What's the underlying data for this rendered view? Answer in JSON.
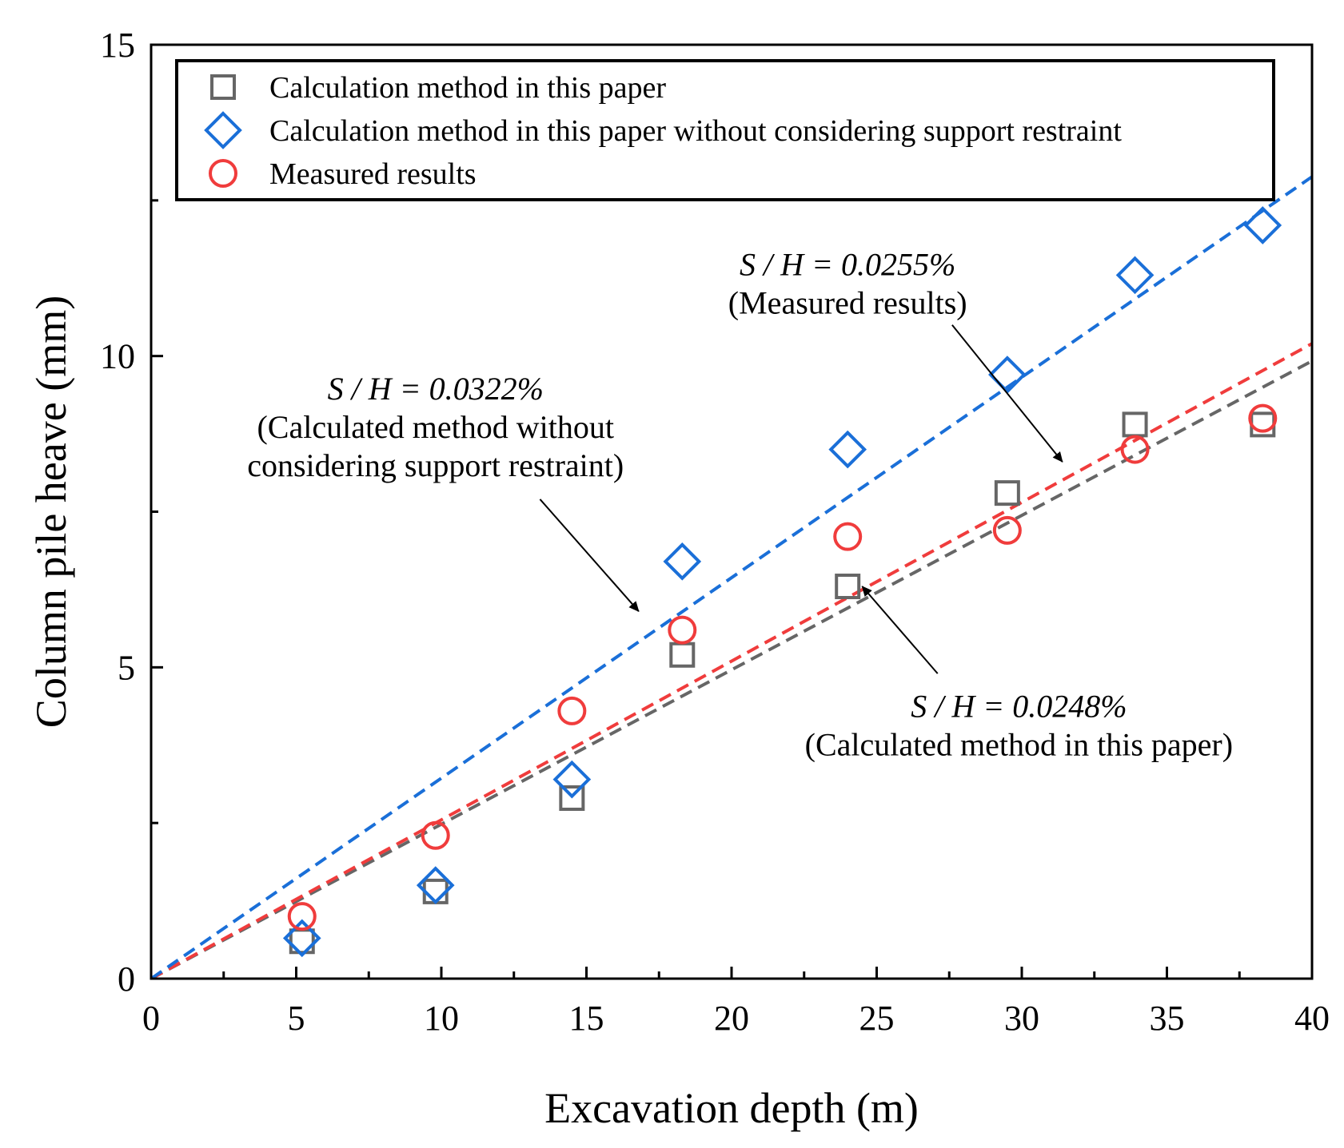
{
  "chart_data": {
    "type": "scatter",
    "title": "",
    "xlabel": "Excavation depth (m)",
    "ylabel": "Column pile heave (mm)",
    "xlim": [
      0,
      40
    ],
    "ylim": [
      0,
      15
    ],
    "xticks": [
      "0",
      "5",
      "10",
      "15",
      "20",
      "25",
      "30",
      "35",
      "40"
    ],
    "yticks": [
      "0",
      "5",
      "10",
      "15"
    ],
    "grid": false,
    "legend_position": "top",
    "series": [
      {
        "name": "Calculation method in this paper",
        "marker": "square",
        "color": "#666666",
        "x": [
          5.2,
          9.8,
          14.5,
          18.3,
          24.0,
          29.5,
          33.9,
          38.3
        ],
        "y": [
          0.6,
          1.4,
          2.9,
          5.2,
          6.3,
          7.8,
          8.9,
          8.9
        ],
        "trend_slope": 0.248
      },
      {
        "name": "Calculation method in this paper without considering  support restraint",
        "marker": "diamond",
        "color": "#1a6fd8",
        "x": [
          5.2,
          9.8,
          14.5,
          18.3,
          24.0,
          29.5,
          33.9,
          38.3
        ],
        "y": [
          0.65,
          1.5,
          3.2,
          6.7,
          8.5,
          9.7,
          11.3,
          12.1
        ],
        "trend_slope": 0.322
      },
      {
        "name": "Measured results",
        "marker": "circle",
        "color": "#f03c3c",
        "x": [
          5.2,
          9.8,
          14.5,
          18.3,
          24.0,
          29.5,
          33.9,
          38.3
        ],
        "y": [
          1.0,
          2.3,
          4.3,
          5.6,
          7.1,
          7.2,
          8.5,
          9.0
        ],
        "trend_slope": 0.255
      }
    ],
    "annotations": [
      {
        "math": "S / H = 0.0322%",
        "lines": [
          "(Calculated method without",
          "considering support restraint)"
        ],
        "anchor_x": 9.8,
        "anchor_y": 9.3,
        "arrow_from": [
          13.4,
          7.7
        ],
        "arrow_to": [
          16.8,
          5.9
        ]
      },
      {
        "math": "S / H = 0.0255%",
        "lines": [
          "(Measured results)"
        ],
        "anchor_x": 24.0,
        "anchor_y": 11.3,
        "arrow_from": [
          27.6,
          10.5
        ],
        "arrow_to": [
          31.4,
          8.3
        ]
      },
      {
        "math": "S / H = 0.0248%",
        "lines": [
          "(Calculated method in this paper)"
        ],
        "anchor_x": 29.9,
        "anchor_y": 4.2,
        "arrow_from": [
          27.1,
          4.9
        ],
        "arrow_to": [
          24.5,
          6.3
        ]
      }
    ]
  }
}
